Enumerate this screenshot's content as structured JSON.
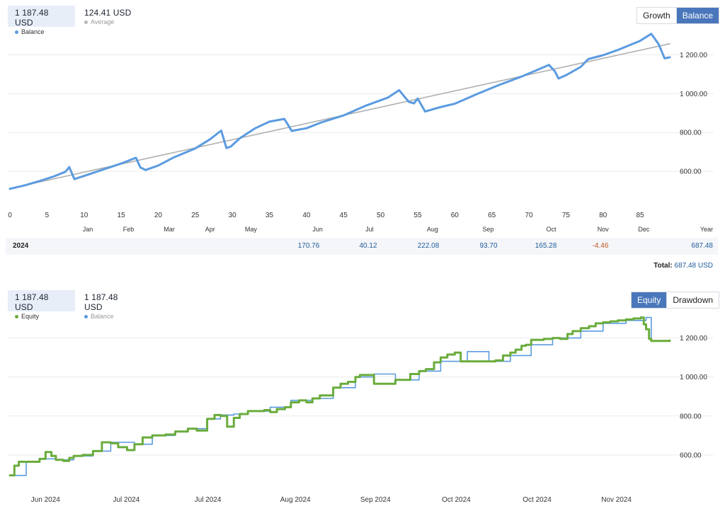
{
  "chart1": {
    "legend": [
      {
        "value": "1 187.48 USD",
        "label": "Balance",
        "color": "#5b9be0"
      },
      {
        "value": "124.41 USD",
        "label": "Average",
        "color": "#b5b5b5"
      }
    ],
    "buttons": [
      "Growth",
      "Balance"
    ],
    "active_button": "Balance",
    "year_label": "Year",
    "year_row": {
      "year": "2024",
      "values": [
        {
          "month": "Jun",
          "value": "170.76"
        },
        {
          "month": "Jul",
          "value": "40.12"
        },
        {
          "month": "Aug",
          "value": "222.08"
        },
        {
          "month": "Sep",
          "value": "93.70"
        },
        {
          "month": "Oct",
          "value": "165.28"
        },
        {
          "month": "Nov",
          "value": "-4.46"
        }
      ],
      "year_total": "687.48"
    },
    "total_label": "Total:",
    "total_value": "687.48 USD"
  },
  "chart2": {
    "legend": [
      {
        "value": "1 187.48 USD",
        "label": "Equity",
        "color": "#6aac3c"
      },
      {
        "value": "1 187.48 USD",
        "label": "Balance",
        "color": "#5b9be0"
      }
    ],
    "buttons": [
      "Equity",
      "Drawdown"
    ],
    "active_button": "Equity"
  },
  "chart_data": [
    {
      "type": "line",
      "xlabel": "",
      "ylabel": "",
      "xlim": [
        0,
        89
      ],
      "ylim": [
        400,
        1300
      ],
      "y_ticks": [
        "600.00",
        "800.00",
        "1 000.00",
        "1 200.00"
      ],
      "y_tick_values": [
        600,
        800,
        1000,
        1200
      ],
      "x_ticks": [
        "0",
        "5",
        "10",
        "15",
        "20",
        "25",
        "30",
        "35",
        "40",
        "45",
        "50",
        "55",
        "60",
        "65",
        "70",
        "75",
        "80",
        "85"
      ],
      "x_tick_values": [
        0,
        5,
        10,
        15,
        20,
        25,
        30,
        35,
        40,
        45,
        50,
        55,
        60,
        65,
        70,
        75,
        80,
        85
      ],
      "month_labels": [
        {
          "label": "Jan",
          "x": 10.5
        },
        {
          "label": "Feb",
          "x": 16
        },
        {
          "label": "Mar",
          "x": 21.5
        },
        {
          "label": "Apr",
          "x": 27
        },
        {
          "label": "May",
          "x": 32.5
        },
        {
          "label": "Jun",
          "x": 41.5
        },
        {
          "label": "Jul",
          "x": 48.5
        },
        {
          "label": "Aug",
          "x": 57
        },
        {
          "label": "Sep",
          "x": 64.5
        },
        {
          "label": "Oct",
          "x": 73
        },
        {
          "label": "Nov",
          "x": 80
        },
        {
          "label": "Dec",
          "x": 85.5
        }
      ],
      "grid": true,
      "series": [
        {
          "name": "Balance",
          "color": "#5b9be0",
          "x": [
            0,
            2,
            4,
            6,
            7.5,
            8,
            8.7,
            9.5,
            12,
            15,
            17,
            17.6,
            18.3,
            20,
            22,
            25,
            27,
            28.5,
            29.2,
            29.8,
            31,
            33,
            35,
            37,
            37.5,
            38,
            40,
            42,
            45,
            48,
            51,
            52.5,
            53.2,
            53.8,
            54.5,
            55,
            56,
            58,
            60,
            63,
            66,
            69,
            71,
            72.7,
            73.5,
            74,
            75,
            77,
            78,
            80,
            82,
            85,
            86.5,
            87.5,
            88.3,
            89
          ],
          "y": [
            510,
            528,
            550,
            575,
            598,
            622,
            560,
            570,
            602,
            640,
            670,
            620,
            607,
            630,
            670,
            718,
            765,
            810,
            720,
            728,
            770,
            820,
            856,
            870,
            840,
            808,
            822,
            852,
            888,
            938,
            980,
            1018,
            985,
            958,
            950,
            975,
            908,
            930,
            948,
            998,
            1045,
            1088,
            1120,
            1148,
            1115,
            1078,
            1095,
            1138,
            1178,
            1198,
            1225,
            1272,
            1308,
            1255,
            1182,
            1187
          ]
        },
        {
          "name": "Average",
          "color": "#b0b0b0",
          "x": [
            0,
            89
          ],
          "y": [
            512,
            1257
          ]
        }
      ]
    },
    {
      "type": "line",
      "xlabel": "",
      "ylabel": "",
      "ylim": [
        400,
        1300
      ],
      "y_ticks": [
        "600.00",
        "800.00",
        "1 000.00",
        "1 200.00"
      ],
      "y_tick_values": [
        600,
        800,
        1000,
        1200
      ],
      "x_ticks": [
        "Jun 2024",
        "Jul 2024",
        "Jul 2024",
        "Aug 2024",
        "Sep 2024",
        "Oct 2024",
        "Oct 2024",
        "Nov 2024"
      ],
      "x_tick_values": [
        4.8,
        15.7,
        26.7,
        38.5,
        49.3,
        60.2,
        71.1,
        81.8
      ],
      "xlim": [
        0,
        89
      ],
      "grid": true,
      "series": [
        {
          "name": "Equity",
          "color": "#6aac3c",
          "x": [
            0,
            0.6,
            1.2,
            2.2,
            4.0,
            4.8,
            5.6,
            6.2,
            7.2,
            8.0,
            8.6,
            9.8,
            11.2,
            12.4,
            13.6,
            14.6,
            15.8,
            16.8,
            17.9,
            19.2,
            21.0,
            22.3,
            24.0,
            25.2,
            26.6,
            27.6,
            28.4,
            29.3,
            30.2,
            31.0,
            32.1,
            33.2,
            34.3,
            35.1,
            36.0,
            37.1,
            37.9,
            39.0,
            40.0,
            40.8,
            41.8,
            42.6,
            43.6,
            44.6,
            45.6,
            46.6,
            47.2,
            48.1,
            49.1,
            50.0,
            51.0,
            52.0,
            53.0,
            54.0,
            55.2,
            56.1,
            57.2,
            58.1,
            59.0,
            60.0,
            60.8,
            61.7,
            62.5,
            63.5,
            64.6,
            65.5,
            66.5,
            67.5,
            68.2,
            69.0,
            69.6,
            70.3,
            71.0,
            72.0,
            73.2,
            74.2,
            75.2,
            75.9,
            77.0,
            78.1,
            79.0,
            80.0,
            81.0,
            82.0,
            83.1,
            84.1,
            85.1,
            85.5,
            85.8,
            86.2,
            86.5,
            87.0,
            88.0,
            89.0
          ],
          "y": [
            495,
            545,
            565,
            565,
            580,
            615,
            595,
            575,
            570,
            585,
            595,
            600,
            620,
            665,
            660,
            640,
            625,
            655,
            690,
            700,
            705,
            720,
            735,
            725,
            785,
            805,
            800,
            745,
            790,
            810,
            825,
            825,
            830,
            820,
            835,
            845,
            870,
            880,
            870,
            890,
            905,
            905,
            945,
            965,
            975,
            1000,
            1010,
            1010,
            965,
            965,
            965,
            985,
            985,
            1015,
            1030,
            1040,
            1075,
            1100,
            1115,
            1125,
            1080,
            1080,
            1080,
            1080,
            1080,
            1085,
            1110,
            1125,
            1140,
            1160,
            1165,
            1190,
            1190,
            1195,
            1200,
            1195,
            1220,
            1235,
            1250,
            1260,
            1275,
            1280,
            1285,
            1290,
            1295,
            1300,
            1305,
            1270,
            1245,
            1195,
            1185,
            1185,
            1185,
            1187
          ]
        },
        {
          "name": "Balance",
          "color": "#5b9be0",
          "x": [
            0,
            2.2,
            4.0,
            6.2,
            8.6,
            11.2,
            13.6,
            16.8,
            19.2,
            22.3,
            24.0,
            26.6,
            28.4,
            30.2,
            32.1,
            35.1,
            37.9,
            40.8,
            43.6,
            46.6,
            49.1,
            52.0,
            55.2,
            58.1,
            61.7,
            64.6,
            67.5,
            70.3,
            73.2,
            77.0,
            80.0,
            83.1,
            85.8,
            86.5,
            89.0
          ],
          "y": [
            495,
            565,
            580,
            575,
            595,
            620,
            665,
            655,
            700,
            720,
            735,
            785,
            805,
            810,
            825,
            845,
            880,
            890,
            945,
            1000,
            1015,
            985,
            1030,
            1080,
            1130,
            1080,
            1110,
            1165,
            1200,
            1235,
            1275,
            1290,
            1305,
            1185,
            1187
          ]
        }
      ]
    }
  ]
}
